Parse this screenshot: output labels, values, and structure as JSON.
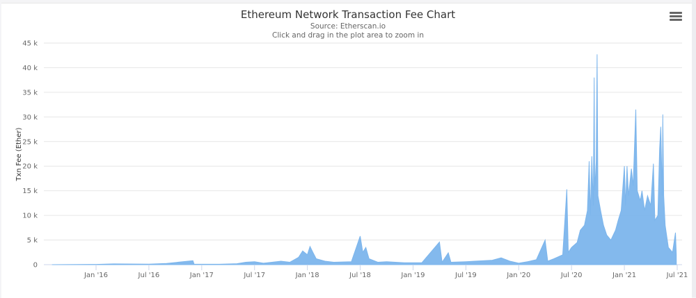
{
  "chart_data": {
    "type": "area",
    "title": "Ethereum Network Transaction Fee Chart",
    "subtitle": "Source: Etherscan.io",
    "hint": "Click and drag in the plot area to zoom in",
    "xlabel": "",
    "ylabel": "Txn Fee (Ether)",
    "ylim": [
      0,
      45000
    ],
    "yticks": [
      0,
      5000,
      10000,
      15000,
      20000,
      25000,
      30000,
      35000,
      40000,
      45000
    ],
    "ytick_labels": [
      "0",
      "5 k",
      "10 k",
      "15 k",
      "20 k",
      "25 k",
      "30 k",
      "35 k",
      "40 k",
      "45 k"
    ],
    "xtick_labels": [
      "Jan '16",
      "Jul '16",
      "Jan '17",
      "Jul '17",
      "Jan '18",
      "Jul '18",
      "Jan '19",
      "Jul '19",
      "Jan '20",
      "Jul '20",
      "Jan '21",
      "Jul '21"
    ],
    "xtick_dates": [
      "2016-01",
      "2016-07",
      "2017-01",
      "2017-07",
      "2018-01",
      "2018-07",
      "2019-01",
      "2019-07",
      "2020-01",
      "2020-07",
      "2021-01",
      "2021-07"
    ],
    "x_range": [
      "2015-08",
      "2021-07"
    ],
    "grid": true,
    "legend": "none",
    "color": "#7cb5ec",
    "series": [
      {
        "name": "Txn Fee (Ether)",
        "points": [
          [
            "2015-08",
            0
          ],
          [
            "2016-01",
            50
          ],
          [
            "2016-03",
            150
          ],
          [
            "2016-07",
            100
          ],
          [
            "2016-09",
            250
          ],
          [
            "2016-12",
            800
          ],
          [
            "2016-12-05",
            100
          ],
          [
            "2017-03",
            80
          ],
          [
            "2017-05",
            200
          ],
          [
            "2017-06",
            500
          ],
          [
            "2017-07",
            600
          ],
          [
            "2017-08",
            300
          ],
          [
            "2017-10",
            700
          ],
          [
            "2017-11",
            500
          ],
          [
            "2017-12",
            1500
          ],
          [
            "2017-12-15",
            2800
          ],
          [
            "2018-01",
            2000
          ],
          [
            "2018-01-10",
            3700
          ],
          [
            "2018-01-20",
            2500
          ],
          [
            "2018-02",
            1200
          ],
          [
            "2018-03",
            700
          ],
          [
            "2018-04",
            500
          ],
          [
            "2018-06",
            600
          ],
          [
            "2018-07",
            5800
          ],
          [
            "2018-07-10",
            2500
          ],
          [
            "2018-07-20",
            3500
          ],
          [
            "2018-08",
            1200
          ],
          [
            "2018-09",
            500
          ],
          [
            "2018-10",
            600
          ],
          [
            "2018-12",
            400
          ],
          [
            "2019-02",
            400
          ],
          [
            "2019-04",
            4600
          ],
          [
            "2019-04-10",
            500
          ],
          [
            "2019-05",
            2400
          ],
          [
            "2019-05-10",
            500
          ],
          [
            "2019-07",
            600
          ],
          [
            "2019-08",
            700
          ],
          [
            "2019-10",
            900
          ],
          [
            "2019-11",
            1400
          ],
          [
            "2019-12",
            700
          ],
          [
            "2020-01",
            300
          ],
          [
            "2020-02",
            600
          ],
          [
            "2020-03",
            1000
          ],
          [
            "2020-04",
            5000
          ],
          [
            "2020-04-10",
            700
          ],
          [
            "2020-05",
            1200
          ],
          [
            "2020-06",
            2000
          ],
          [
            "2020-06-15",
            15300
          ],
          [
            "2020-06-20",
            2500
          ],
          [
            "2020-07",
            3500
          ],
          [
            "2020-07-20",
            4500
          ],
          [
            "2020-08",
            7000
          ],
          [
            "2020-08-15",
            8000
          ],
          [
            "2020-08-25",
            11000
          ],
          [
            "2020-09-01",
            21000
          ],
          [
            "2020-09-05",
            10000
          ],
          [
            "2020-09-10",
            22000
          ],
          [
            "2020-09-15",
            12000
          ],
          [
            "2020-09-18",
            38000
          ],
          [
            "2020-09-20",
            15000
          ],
          [
            "2020-09-25",
            21000
          ],
          [
            "2020-09-28",
            42700
          ],
          [
            "2020-10-01",
            14000
          ],
          [
            "2020-10-10",
            11000
          ],
          [
            "2020-10-20",
            8000
          ],
          [
            "2020-11",
            6000
          ],
          [
            "2020-11-15",
            5000
          ],
          [
            "2020-12",
            7000
          ],
          [
            "2020-12-10",
            9000
          ],
          [
            "2020-12-20",
            11000
          ],
          [
            "2021-01",
            20000
          ],
          [
            "2021-01-05",
            12000
          ],
          [
            "2021-01-10",
            20000
          ],
          [
            "2021-01-15",
            14000
          ],
          [
            "2021-01-25",
            19500
          ],
          [
            "2021-02",
            16000
          ],
          [
            "2021-02-10",
            31500
          ],
          [
            "2021-02-15",
            15000
          ],
          [
            "2021-02-25",
            13000
          ],
          [
            "2021-03",
            15000
          ],
          [
            "2021-03-10",
            11000
          ],
          [
            "2021-03-20",
            14000
          ],
          [
            "2021-04",
            12000
          ],
          [
            "2021-04-10",
            20500
          ],
          [
            "2021-04-15",
            9000
          ],
          [
            "2021-04-25",
            10000
          ],
          [
            "2021-05-01",
            23500
          ],
          [
            "2021-05-05",
            28000
          ],
          [
            "2021-05-10",
            14000
          ],
          [
            "2021-05-12",
            30500
          ],
          [
            "2021-05-15",
            14000
          ],
          [
            "2021-05-20",
            8000
          ],
          [
            "2021-06",
            3500
          ],
          [
            "2021-06-15",
            2500
          ],
          [
            "2021-06-25",
            6500
          ],
          [
            "2021-06-28",
            2000
          ]
        ]
      }
    ]
  },
  "toolbar": {
    "menu_icon": "hamburger-menu-icon"
  }
}
